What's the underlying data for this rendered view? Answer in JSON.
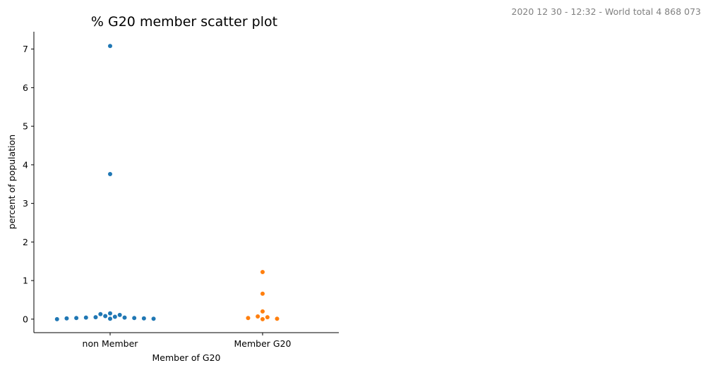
{
  "header_note": "2020 12 30 - 12:32 - World total 4 868 073",
  "chart_data": {
    "type": "scatter",
    "title": "% G20 member scatter plot",
    "xlabel": "Member of G20",
    "ylabel": "percent of population",
    "categories": [
      "non Member",
      "Member G20"
    ],
    "ylim": [
      -0.35,
      7.45
    ],
    "yticks": [
      0,
      1,
      2,
      3,
      4,
      5,
      6,
      7
    ],
    "grid": false,
    "colors": {
      "non Member": "#1f77b4",
      "Member G20": "#ff7f0e"
    },
    "series": [
      {
        "category": "non Member",
        "values": [
          7.08,
          3.76,
          0.15,
          0.13,
          0.11,
          0.08,
          0.06,
          0.05,
          0.04,
          0.04,
          0.03,
          0.03,
          0.02,
          0.02,
          0.01,
          0.01,
          0.0
        ]
      },
      {
        "category": "Member G20",
        "values": [
          1.22,
          0.66,
          0.2,
          0.07,
          0.05,
          0.03,
          0.01,
          0.0
        ]
      }
    ]
  }
}
